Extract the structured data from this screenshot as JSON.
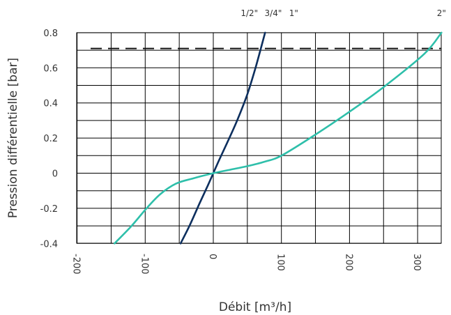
{
  "chart_data": {
    "type": "line",
    "xlabel": "Débit [m³/h]",
    "ylabel": "Pression différentielle [bar]",
    "xlim": [
      -210,
      335
    ],
    "ylim": [
      -0.4,
      0.8
    ],
    "x_ticks": [
      -200,
      -100,
      0,
      100,
      200,
      300
    ],
    "x_tick_labels": [
      "-200",
      "-100",
      "0",
      "100",
      "200",
      "300"
    ],
    "y_ticks": [
      0.8,
      0.6,
      0.4,
      0.2,
      0,
      -0.2,
      -0.4
    ],
    "y_tick_labels": [
      "0.8",
      "0.6",
      "0.4",
      "0.2",
      "0",
      "-0.2",
      "-0.4"
    ],
    "x_minor_step": 50,
    "y_minor_step": 0.1,
    "grid": true,
    "top_labels": [
      {
        "text": "1/2\"",
        "x": 53
      },
      {
        "text": "3/4\"",
        "x": 88
      },
      {
        "text": "1\"",
        "x": 118
      },
      {
        "text": "2\"",
        "x": 335
      }
    ],
    "reference_line": {
      "y": 0.71,
      "style": "dashed",
      "color": "#111111"
    },
    "series": [
      {
        "color": "#0d2f5e",
        "x": [
          -48,
          -35,
          -20,
          -8,
          0,
          8,
          20,
          35,
          50,
          62,
          76
        ],
        "y": [
          -0.4,
          -0.3,
          -0.17,
          -0.07,
          0.0,
          0.07,
          0.17,
          0.3,
          0.45,
          0.6,
          0.8
        ]
      },
      {
        "color": "#2ebfaa",
        "x": [
          -145,
          -120,
          -98,
          -78,
          -55,
          -30,
          0,
          25,
          50,
          75,
          100,
          150,
          200,
          250,
          310,
          335
        ],
        "y": [
          -0.4,
          -0.3,
          -0.2,
          -0.12,
          -0.06,
          -0.03,
          0.0,
          0.02,
          0.04,
          0.065,
          0.1,
          0.22,
          0.35,
          0.49,
          0.68,
          0.8
        ]
      }
    ]
  }
}
